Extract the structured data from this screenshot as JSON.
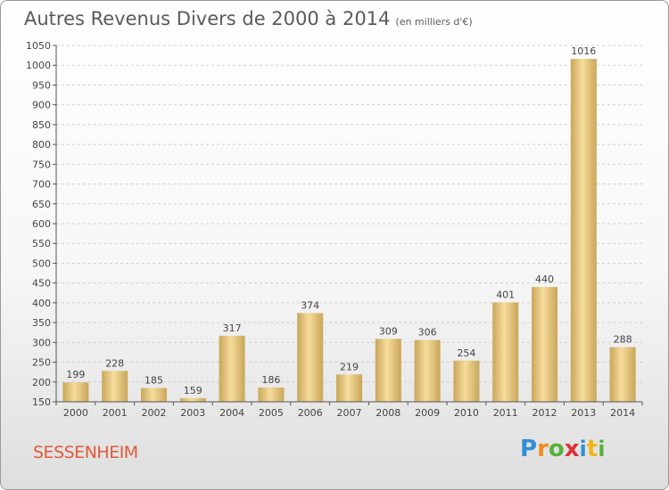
{
  "title": "Autres Revenus Divers de 2000 à 2014",
  "subtitle": "(en milliers d'€)",
  "city": "SESSENHEIM",
  "logo": {
    "text": "Proxiti",
    "letters": [
      "P",
      "r",
      "o",
      "x",
      "i",
      "t",
      "i"
    ],
    "colors": [
      "#2e8fd6",
      "#f08a1c",
      "#58b13b",
      "#e0303a",
      "#2e8fd6",
      "#f0b41c",
      "#58b13b"
    ]
  },
  "colors": {
    "bar_light": "#f7dc9c",
    "bar_dark": "#c9a659",
    "grid": "#d0d0d0",
    "axis": "#555555"
  },
  "chart_data": {
    "type": "bar",
    "title": "Autres Revenus Divers de 2000 à 2014",
    "subtitle": "(en milliers d'€)",
    "categories": [
      "2000",
      "2001",
      "2002",
      "2003",
      "2004",
      "2005",
      "2006",
      "2007",
      "2008",
      "2009",
      "2010",
      "2011",
      "2012",
      "2013",
      "2014"
    ],
    "values": [
      199,
      228,
      185,
      159,
      317,
      186,
      374,
      219,
      309,
      306,
      254,
      401,
      440,
      1016,
      288
    ],
    "ylim": [
      150,
      1050
    ],
    "yticks": [
      150,
      200,
      250,
      300,
      350,
      400,
      450,
      500,
      550,
      600,
      650,
      700,
      750,
      800,
      850,
      900,
      950,
      1000,
      1050
    ],
    "grid": true,
    "legend": "none"
  }
}
